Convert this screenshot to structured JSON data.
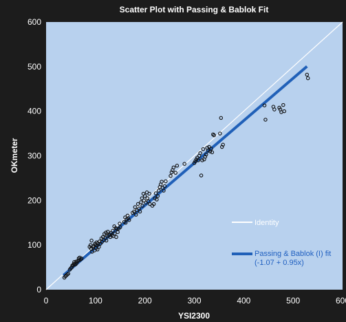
{
  "chart_data": {
    "type": "scatter",
    "title": "Scatter Plot with Passing & Bablok Fit",
    "xlabel": "YSI2300",
    "ylabel": "OKmeter",
    "xlim": [
      0,
      600
    ],
    "ylim": [
      0,
      600
    ],
    "xticks": [
      "0",
      "100",
      "200",
      "300",
      "400",
      "500",
      "600"
    ],
    "yticks": [
      "0",
      "100",
      "200",
      "300",
      "400",
      "500",
      "600"
    ],
    "grid": false,
    "legend_placement": "bottom-right",
    "colors": {
      "plot_bg": "#b8d1ee",
      "points": "#111111",
      "identity": "#ffffff",
      "fit": "#2060b8",
      "outer_bg": "#1c1c1c"
    },
    "identity": {
      "name": "Identity",
      "points": [
        [
          0,
          0
        ],
        [
          600,
          600
        ]
      ]
    },
    "fit": {
      "name": "Passing & Bablok (I) fit",
      "equation": "(-1.07 + 0.95x)",
      "intercept": -1.07,
      "slope": 0.95,
      "x_range": [
        35,
        528
      ]
    },
    "points": [
      [
        37,
        27
      ],
      [
        39,
        30
      ],
      [
        41,
        32
      ],
      [
        43,
        34
      ],
      [
        45,
        36
      ],
      [
        48,
        45
      ],
      [
        50,
        48
      ],
      [
        52,
        50
      ],
      [
        53,
        54
      ],
      [
        55,
        55
      ],
      [
        56,
        58
      ],
      [
        57,
        62
      ],
      [
        58,
        56
      ],
      [
        60,
        57
      ],
      [
        61,
        63
      ],
      [
        62,
        60
      ],
      [
        64,
        64
      ],
      [
        66,
        70
      ],
      [
        67,
        66
      ],
      [
        68,
        72
      ],
      [
        70,
        68
      ],
      [
        72,
        70
      ],
      [
        88,
        96
      ],
      [
        90,
        100
      ],
      [
        91,
        92
      ],
      [
        92,
        110
      ],
      [
        93,
        85
      ],
      [
        95,
        95
      ],
      [
        96,
        98
      ],
      [
        98,
        88
      ],
      [
        99,
        103
      ],
      [
        100,
        100
      ],
      [
        101,
        93
      ],
      [
        102,
        106
      ],
      [
        103,
        99
      ],
      [
        104,
        90
      ],
      [
        105,
        104
      ],
      [
        107,
        96
      ],
      [
        108,
        108
      ],
      [
        110,
        103
      ],
      [
        112,
        115
      ],
      [
        113,
        107
      ],
      [
        115,
        118
      ],
      [
        117,
        111
      ],
      [
        118,
        125
      ],
      [
        120,
        116
      ],
      [
        121,
        128
      ],
      [
        122,
        110
      ],
      [
        124,
        120
      ],
      [
        125,
        130
      ],
      [
        127,
        122
      ],
      [
        129,
        124
      ],
      [
        130,
        118
      ],
      [
        131,
        127
      ],
      [
        133,
        122
      ],
      [
        135,
        132
      ],
      [
        136,
        120
      ],
      [
        138,
        142
      ],
      [
        139,
        126
      ],
      [
        141,
        138
      ],
      [
        142,
        118
      ],
      [
        143,
        136
      ],
      [
        145,
        129
      ],
      [
        147,
        137
      ],
      [
        149,
        148
      ],
      [
        150,
        140
      ],
      [
        158,
        152
      ],
      [
        160,
        162
      ],
      [
        161,
        150
      ],
      [
        163,
        158
      ],
      [
        165,
        166
      ],
      [
        166,
        160
      ],
      [
        168,
        156
      ],
      [
        175,
        172
      ],
      [
        178,
        175
      ],
      [
        180,
        185
      ],
      [
        182,
        168
      ],
      [
        184,
        178
      ],
      [
        186,
        192
      ],
      [
        188,
        182
      ],
      [
        190,
        175
      ],
      [
        192,
        196
      ],
      [
        194,
        205
      ],
      [
        195,
        188
      ],
      [
        197,
        215
      ],
      [
        198,
        200
      ],
      [
        200,
        210
      ],
      [
        202,
        195
      ],
      [
        204,
        218
      ],
      [
        205,
        205
      ],
      [
        207,
        198
      ],
      [
        209,
        215
      ],
      [
        210,
        192
      ],
      [
        215,
        188
      ],
      [
        218,
        192
      ],
      [
        220,
        205
      ],
      [
        222,
        216
      ],
      [
        224,
        202
      ],
      [
        226,
        210
      ],
      [
        228,
        222
      ],
      [
        230,
        230
      ],
      [
        232,
        236
      ],
      [
        234,
        242
      ],
      [
        236,
        228
      ],
      [
        238,
        222
      ],
      [
        240,
        232
      ],
      [
        242,
        243
      ],
      [
        252,
        255
      ],
      [
        254,
        263
      ],
      [
        256,
        268
      ],
      [
        258,
        274
      ],
      [
        262,
        262
      ],
      [
        265,
        278
      ],
      [
        280,
        282
      ],
      [
        300,
        284
      ],
      [
        302,
        288
      ],
      [
        304,
        292
      ],
      [
        306,
        296
      ],
      [
        308,
        290
      ],
      [
        310,
        300
      ],
      [
        312,
        306
      ],
      [
        314,
        256
      ],
      [
        316,
        290
      ],
      [
        318,
        315
      ],
      [
        320,
        292
      ],
      [
        322,
        298
      ],
      [
        324,
        303
      ],
      [
        326,
        318
      ],
      [
        328,
        312
      ],
      [
        330,
        320
      ],
      [
        332,
        310
      ],
      [
        334,
        316
      ],
      [
        336,
        308
      ],
      [
        338,
        348
      ],
      [
        340,
        346
      ],
      [
        352,
        350
      ],
      [
        354,
        385
      ],
      [
        356,
        320
      ],
      [
        358,
        325
      ],
      [
        442,
        413
      ],
      [
        444,
        381
      ],
      [
        460,
        410
      ],
      [
        462,
        404
      ],
      [
        472,
        408
      ],
      [
        474,
        404
      ],
      [
        476,
        398
      ],
      [
        480,
        414
      ],
      [
        482,
        400
      ],
      [
        528,
        482
      ],
      [
        530,
        474
      ]
    ]
  }
}
